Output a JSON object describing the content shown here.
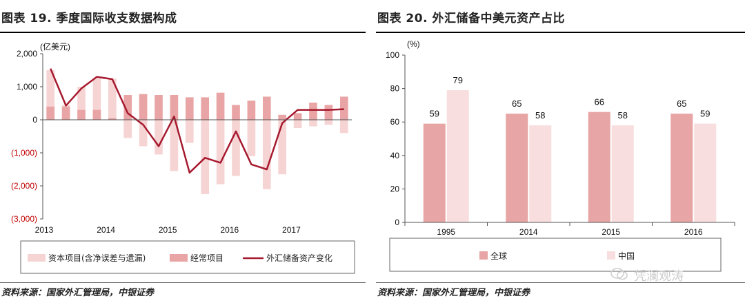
{
  "left": {
    "title": "图表 19. 季度国际收支数据构成",
    "source": "资料来源：国家外汇管理局，中银证券",
    "chart_data": {
      "type": "bar",
      "unit_label": "(亿美元)",
      "ylim": [
        -3000,
        2000
      ],
      "yticks": [
        "2,000",
        "1,000",
        "0",
        "(1,000)",
        "(2,000)",
        "(3,000)"
      ],
      "ytick_values": [
        2000,
        1000,
        0,
        -1000,
        -2000,
        -3000
      ],
      "xtick_labels": [
        "2013",
        "2014",
        "2015",
        "2016",
        "2017"
      ],
      "quarters": [
        "2013Q1",
        "2013Q2",
        "2013Q3",
        "2013Q4",
        "2014Q1",
        "2014Q2",
        "2014Q3",
        "2014Q4",
        "2015Q1",
        "2015Q2",
        "2015Q3",
        "2015Q4",
        "2016Q1",
        "2016Q2",
        "2016Q3",
        "2016Q4",
        "2017Q1",
        "2017Q2",
        "2017Q3",
        "2017Q4"
      ],
      "series": [
        {
          "name": "资本项目(含净误差与遗漏)",
          "color": "#f6d4d4",
          "values": [
            1500,
            450,
            1000,
            1250,
            1250,
            -550,
            -800,
            -1050,
            -1550,
            -700,
            -2250,
            -1950,
            -1700,
            -1100,
            -2100,
            -1650,
            -250,
            -200,
            -150,
            -400
          ]
        },
        {
          "name": "经常项目",
          "color": "#e9a5a5",
          "values": [
            400,
            400,
            300,
            300,
            50,
            750,
            780,
            750,
            750,
            680,
            680,
            820,
            450,
            580,
            700,
            150,
            200,
            520,
            450,
            700
          ]
        },
        {
          "name": "外汇储备资产变化",
          "color": "#a6192e",
          "style": "line",
          "values": [
            1550,
            430,
            950,
            1300,
            1230,
            200,
            -150,
            -800,
            100,
            -1600,
            -1150,
            -1300,
            -350,
            -1350,
            -1500,
            -100,
            300,
            300,
            300,
            320
          ]
        }
      ]
    }
  },
  "right": {
    "title": "图表 20. 外汇储备中美元资产占比",
    "source": "资料来源：国家外汇管理局，中银证券",
    "chart_data": {
      "type": "bar",
      "unit_label": "(%)",
      "ylim": [
        0,
        100
      ],
      "yticks": [
        "100",
        "80",
        "60",
        "40",
        "20",
        "0"
      ],
      "ytick_values": [
        100,
        80,
        60,
        40,
        20,
        0
      ],
      "categories": [
        "1995",
        "2014",
        "2015",
        "2016"
      ],
      "series": [
        {
          "name": "全球",
          "color": "#e8a5a5",
          "values": [
            59,
            65,
            66,
            65
          ]
        },
        {
          "name": "中国",
          "color": "#f8dede",
          "values": [
            79,
            58,
            58,
            59
          ]
        }
      ]
    }
  },
  "watermark": {
    "text": "凭澜观涛"
  }
}
